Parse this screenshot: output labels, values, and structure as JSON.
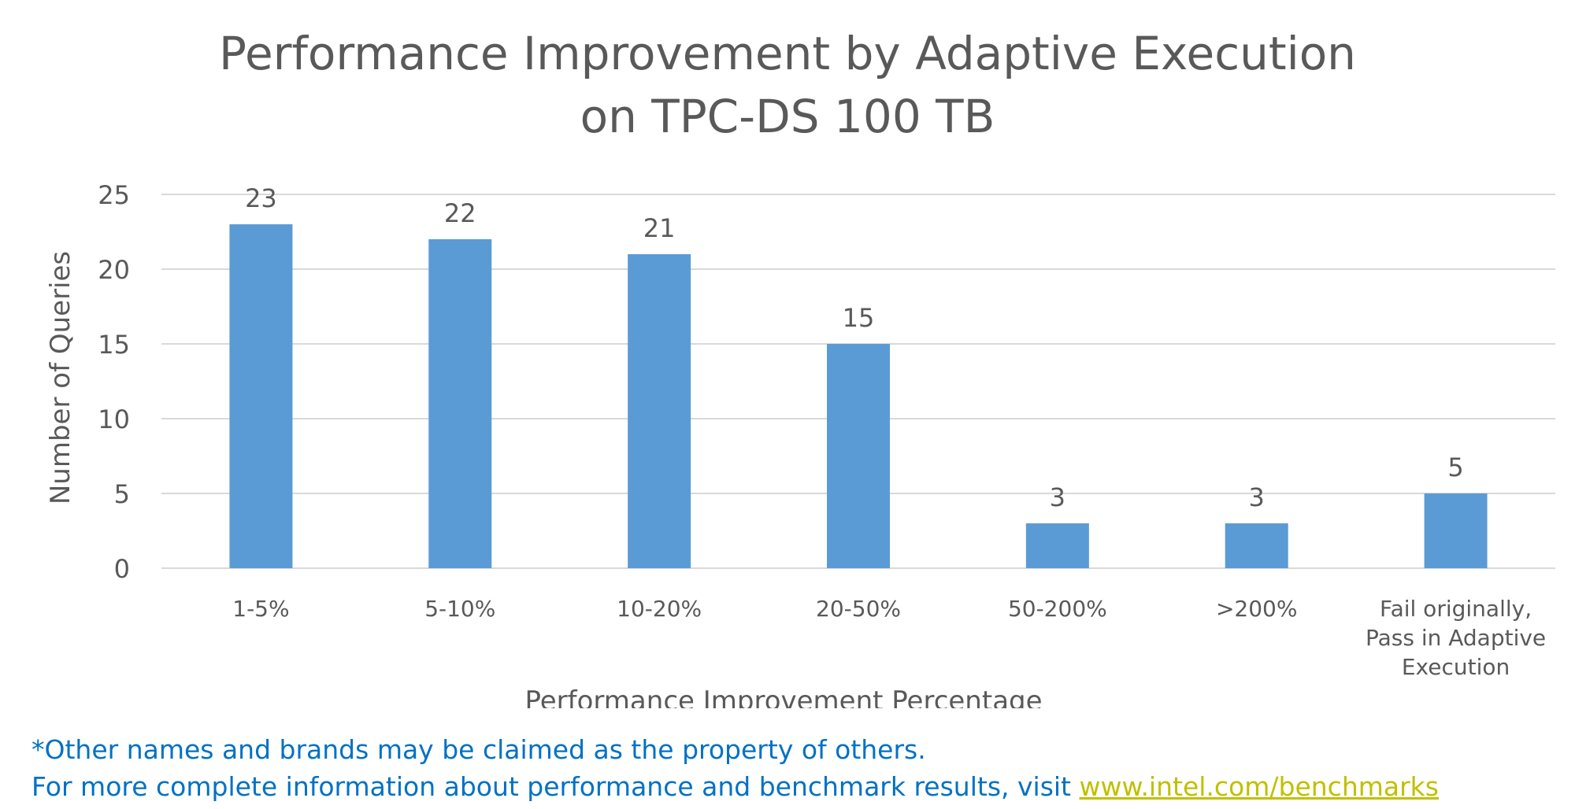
{
  "chart_data": {
    "type": "bar",
    "title_line1": "Performance Improvement by Adaptive Execution",
    "title_line2": "on TPC-DS 100 TB",
    "xlabel": "Performance Improvement  Percentage",
    "ylabel": "Number  of Queries",
    "categories": [
      [
        "1-5%"
      ],
      [
        "5-10%"
      ],
      [
        "10-20%"
      ],
      [
        "20-50%"
      ],
      [
        "50-200%"
      ],
      [
        ">200%"
      ],
      [
        "Fail originally,",
        "Pass in Adaptive",
        "Execution"
      ]
    ],
    "values": [
      23,
      22,
      21,
      15,
      3,
      3,
      5
    ],
    "ylim": [
      0,
      25
    ],
    "yticks": [
      0,
      5,
      10,
      15,
      20,
      25
    ],
    "grid": true,
    "bar_color": "#5b9bd5"
  },
  "footnote": {
    "line1": "*Other names and brands may be claimed as the property of others.",
    "line2_prefix": "For more complete information about performance and benchmark results, visit ",
    "link_text": "www.intel.com/benchmarks"
  },
  "colors": {
    "title": "#595959",
    "axis_text": "#595959",
    "gridline": "#d9d9d9",
    "footnote": "#0071c5",
    "link": "#c0c000"
  }
}
